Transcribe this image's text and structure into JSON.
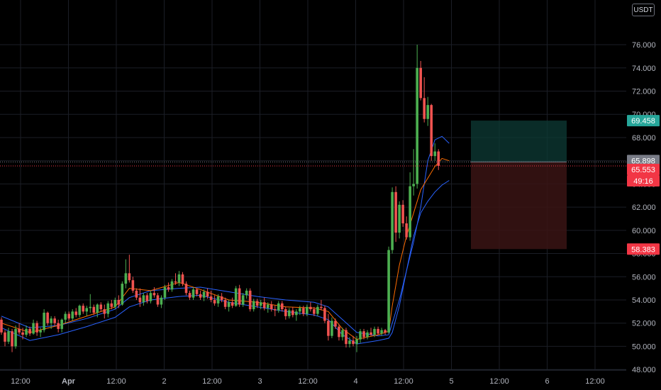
{
  "chart_data": {
    "type": "candlestick",
    "quote_currency": "USDT",
    "y_ticks": [
      "48.000",
      "50.000",
      "52.000",
      "54.000",
      "56.000",
      "58.000",
      "60.000",
      "62.000",
      "64.000",
      "66.000",
      "68.000",
      "70.000",
      "72.000",
      "74.000",
      "76.000"
    ],
    "ylim": [
      47.0,
      77.3
    ],
    "x_ticks": [
      {
        "label": "12:00",
        "bold": false
      },
      {
        "label": "Apr",
        "bold": true
      },
      {
        "label": "12:00",
        "bold": false
      },
      {
        "label": "2",
        "bold": false
      },
      {
        "label": "12:00",
        "bold": false
      },
      {
        "label": "3",
        "bold": false
      },
      {
        "label": "12:00",
        "bold": false
      },
      {
        "label": "4",
        "bold": false
      },
      {
        "label": "12:00",
        "bold": false
      },
      {
        "label": "5",
        "bold": false
      },
      {
        "label": "12:00",
        "bold": false
      },
      {
        "label": "6",
        "bold": false
      },
      {
        "label": "12:00",
        "bold": false
      }
    ],
    "grid": true,
    "price_labels": {
      "take_profit": {
        "text": "69.458",
        "value": 69.458,
        "color": "#26a69a"
      },
      "entry": {
        "text": "65.898",
        "value": 65.898,
        "color": "#787b86"
      },
      "last": {
        "text": "65.553",
        "value": 65.553,
        "color": "#f23645"
      },
      "countdown": {
        "text": "49:16",
        "color": "#f23645"
      },
      "stop_loss": {
        "text": "58.383",
        "value": 58.383,
        "color": "#f23645"
      }
    },
    "position_tool": {
      "entry": 65.898,
      "target": 69.458,
      "stop": 58.383
    },
    "series": [
      {
        "name": "",
        "color": "#2962ff",
        "role": "ma-slow"
      },
      {
        "name": "",
        "color": "#ff6d00",
        "role": "ma-fast"
      }
    ],
    "candles_note": "approximate OHLC per bar",
    "candles": [
      [
        52.3,
        52.5,
        51.0,
        51.2
      ],
      [
        51.2,
        51.4,
        50.0,
        50.4
      ],
      [
        50.4,
        51.6,
        50.2,
        51.3
      ],
      [
        51.3,
        51.5,
        49.5,
        50.0
      ],
      [
        50.0,
        51.8,
        49.8,
        51.5
      ],
      [
        51.5,
        52.0,
        51.0,
        51.2
      ],
      [
        51.2,
        51.6,
        50.6,
        51.0
      ],
      [
        51.0,
        51.8,
        50.8,
        51.5
      ],
      [
        51.5,
        51.7,
        50.9,
        51.1
      ],
      [
        51.1,
        52.3,
        51.0,
        52.0
      ],
      [
        52.0,
        52.2,
        50.9,
        51.2
      ],
      [
        51.2,
        51.6,
        50.8,
        51.4
      ],
      [
        51.4,
        53.2,
        51.2,
        52.9
      ],
      [
        52.9,
        53.0,
        51.8,
        52.0
      ],
      [
        52.0,
        52.6,
        51.5,
        52.4
      ],
      [
        52.4,
        52.6,
        51.8,
        52.0
      ],
      [
        52.0,
        52.3,
        51.2,
        51.5
      ],
      [
        51.5,
        52.4,
        51.2,
        52.3
      ],
      [
        52.3,
        53.0,
        52.0,
        52.8
      ],
      [
        52.8,
        53.0,
        52.2,
        52.4
      ],
      [
        52.4,
        53.2,
        52.2,
        53.0
      ],
      [
        53.0,
        53.3,
        52.5,
        52.7
      ],
      [
        52.7,
        53.6,
        52.5,
        53.5
      ],
      [
        53.5,
        53.7,
        52.8,
        53.0
      ],
      [
        53.0,
        53.5,
        52.6,
        53.3
      ],
      [
        53.3,
        54.5,
        52.9,
        53.4
      ],
      [
        53.4,
        53.6,
        52.7,
        52.9
      ],
      [
        52.9,
        53.7,
        52.5,
        53.6
      ],
      [
        53.6,
        53.8,
        53.0,
        53.2
      ],
      [
        53.2,
        53.6,
        52.4,
        52.8
      ],
      [
        52.8,
        53.9,
        52.5,
        53.7
      ],
      [
        53.7,
        54.0,
        53.2,
        53.4
      ],
      [
        53.4,
        54.2,
        53.2,
        54.0
      ],
      [
        54.0,
        54.4,
        53.3,
        53.6
      ],
      [
        53.6,
        55.6,
        53.5,
        55.4
      ],
      [
        55.4,
        57.5,
        55.0,
        56.3
      ],
      [
        56.3,
        57.9,
        55.5,
        55.7
      ],
      [
        55.7,
        56.0,
        54.6,
        54.8
      ],
      [
        54.8,
        55.0,
        54.0,
        54.2
      ],
      [
        54.2,
        55.0,
        53.4,
        53.8
      ],
      [
        53.8,
        54.6,
        53.5,
        54.4
      ],
      [
        54.4,
        54.6,
        53.7,
        53.9
      ],
      [
        53.9,
        54.8,
        53.7,
        54.6
      ],
      [
        54.6,
        55.1,
        54.2,
        54.4
      ],
      [
        54.4,
        54.6,
        53.4,
        53.6
      ],
      [
        53.6,
        54.4,
        53.3,
        54.2
      ],
      [
        54.2,
        55.3,
        54.0,
        55.1
      ],
      [
        55.1,
        55.5,
        54.7,
        54.9
      ],
      [
        54.9,
        55.8,
        54.7,
        55.6
      ],
      [
        55.6,
        56.3,
        55.3,
        55.5
      ],
      [
        55.5,
        56.5,
        55.2,
        56.2
      ],
      [
        56.2,
        56.4,
        55.2,
        55.4
      ],
      [
        55.4,
        55.6,
        54.4,
        54.6
      ],
      [
        54.6,
        54.8,
        54.0,
        54.2
      ],
      [
        54.2,
        55.1,
        54.0,
        54.9
      ],
      [
        54.9,
        55.0,
        54.3,
        54.5
      ],
      [
        54.5,
        54.8,
        54.0,
        54.2
      ],
      [
        54.2,
        54.9,
        53.9,
        54.7
      ],
      [
        54.7,
        55.0,
        54.1,
        54.3
      ],
      [
        54.3,
        54.8,
        53.8,
        54.0
      ],
      [
        54.0,
        54.4,
        53.5,
        53.7
      ],
      [
        53.7,
        54.5,
        53.4,
        54.3
      ],
      [
        54.3,
        54.6,
        53.8,
        54.0
      ],
      [
        54.0,
        54.2,
        53.2,
        53.4
      ],
      [
        53.4,
        54.0,
        53.0,
        53.8
      ],
      [
        53.8,
        54.2,
        53.3,
        53.5
      ],
      [
        53.5,
        55.2,
        53.4,
        55.0
      ],
      [
        55.0,
        55.3,
        53.4,
        53.6
      ],
      [
        53.6,
        54.6,
        53.4,
        54.4
      ],
      [
        54.4,
        55.0,
        54.1,
        54.8
      ],
      [
        54.8,
        55.0,
        53.0,
        53.2
      ],
      [
        53.2,
        54.1,
        53.0,
        53.9
      ],
      [
        53.9,
        54.1,
        53.3,
        53.5
      ],
      [
        53.5,
        54.0,
        53.2,
        53.8
      ],
      [
        53.8,
        54.2,
        53.1,
        53.3
      ],
      [
        53.3,
        53.8,
        52.9,
        53.6
      ],
      [
        53.6,
        53.9,
        53.0,
        53.2
      ],
      [
        53.2,
        53.5,
        52.6,
        53.1
      ],
      [
        53.1,
        53.9,
        52.9,
        53.7
      ],
      [
        53.7,
        53.9,
        53.0,
        53.2
      ],
      [
        53.2,
        53.4,
        52.3,
        52.6
      ],
      [
        52.6,
        53.3,
        52.4,
        53.1
      ],
      [
        53.1,
        53.4,
        52.5,
        52.7
      ],
      [
        52.7,
        53.2,
        52.2,
        53.0
      ],
      [
        53.0,
        53.5,
        52.7,
        53.3
      ],
      [
        53.3,
        53.5,
        52.6,
        52.8
      ],
      [
        52.8,
        53.6,
        52.6,
        53.4
      ],
      [
        53.4,
        53.8,
        53.0,
        53.2
      ],
      [
        53.2,
        53.4,
        52.6,
        52.8
      ],
      [
        52.8,
        53.6,
        52.6,
        53.4
      ],
      [
        53.4,
        54.0,
        53.1,
        53.3
      ],
      [
        53.3,
        53.5,
        52.0,
        52.2
      ],
      [
        52.2,
        52.8,
        50.5,
        50.9
      ],
      [
        50.9,
        52.5,
        50.7,
        52.2
      ],
      [
        52.2,
        52.4,
        51.5,
        51.7
      ],
      [
        51.7,
        51.9,
        50.5,
        50.8
      ],
      [
        50.8,
        51.6,
        50.5,
        51.4
      ],
      [
        51.4,
        51.6,
        49.9,
        50.2
      ],
      [
        50.2,
        50.8,
        49.9,
        50.5
      ],
      [
        50.5,
        50.9,
        50.0,
        50.2
      ],
      [
        50.2,
        50.9,
        49.5,
        50.6
      ],
      [
        50.6,
        51.5,
        50.3,
        51.3
      ],
      [
        51.3,
        51.5,
        50.6,
        50.8
      ],
      [
        50.8,
        51.4,
        50.6,
        51.2
      ],
      [
        51.2,
        51.6,
        50.9,
        51.0
      ],
      [
        51.0,
        51.7,
        50.8,
        51.5
      ],
      [
        51.5,
        51.7,
        51.0,
        51.1
      ],
      [
        51.1,
        51.6,
        50.9,
        51.4
      ],
      [
        51.4,
        51.5,
        51.0,
        51.2
      ],
      [
        51.2,
        58.6,
        51.1,
        58.3
      ],
      [
        58.3,
        63.7,
        58.0,
        63.3
      ],
      [
        63.3,
        63.8,
        59.0,
        59.8
      ],
      [
        59.8,
        62.5,
        59.3,
        62.2
      ],
      [
        62.2,
        62.6,
        60.3,
        60.6
      ],
      [
        60.6,
        61.2,
        59.2,
        59.4
      ],
      [
        59.4,
        65.0,
        59.1,
        63.8
      ],
      [
        63.8,
        67.0,
        63.0,
        64.0
      ],
      [
        64.0,
        76.0,
        63.6,
        74.0
      ],
      [
        74.0,
        74.6,
        71.2,
        71.4
      ],
      [
        71.4,
        73.2,
        69.3,
        69.6
      ],
      [
        69.6,
        71.5,
        69.0,
        70.8
      ],
      [
        70.8,
        70.9,
        66.0,
        66.4
      ],
      [
        66.4,
        67.5,
        66.0,
        66.8
      ],
      [
        66.8,
        67.0,
        65.2,
        65.553
      ]
    ],
    "ma_slow": [
      [
        0,
        52.6
      ],
      [
        8,
        51.6
      ],
      [
        16,
        51.8
      ],
      [
        24,
        52.4
      ],
      [
        32,
        53.2
      ],
      [
        36,
        54.2
      ],
      [
        42,
        54.8
      ],
      [
        50,
        55.0
      ],
      [
        56,
        55.1
      ],
      [
        64,
        54.7
      ],
      [
        72,
        54.3
      ],
      [
        80,
        54.0
      ],
      [
        88,
        53.8
      ],
      [
        92,
        53.4
      ],
      [
        96,
        52.3
      ],
      [
        100,
        51.2
      ],
      [
        106,
        50.9
      ],
      [
        109,
        51.0
      ],
      [
        110,
        52.0
      ],
      [
        112,
        54.0
      ],
      [
        114,
        56.5
      ],
      [
        116,
        59.0
      ],
      [
        118,
        62.0
      ],
      [
        120,
        66.0
      ],
      [
        122,
        67.8
      ],
      [
        124,
        68.1
      ],
      [
        126,
        67.5
      ]
    ],
    "ma_fast": [
      [
        0,
        52.0
      ],
      [
        8,
        51.2
      ],
      [
        16,
        51.8
      ],
      [
        24,
        52.6
      ],
      [
        32,
        53.4
      ],
      [
        36,
        55.0
      ],
      [
        42,
        54.8
      ],
      [
        50,
        55.5
      ],
      [
        56,
        54.9
      ],
      [
        64,
        54.0
      ],
      [
        72,
        53.8
      ],
      [
        80,
        53.4
      ],
      [
        88,
        53.3
      ],
      [
        92,
        53.0
      ],
      [
        96,
        51.5
      ],
      [
        100,
        50.6
      ],
      [
        106,
        51.0
      ],
      [
        109,
        51.3
      ],
      [
        110,
        53.5
      ],
      [
        112,
        57.0
      ],
      [
        114,
        59.5
      ],
      [
        116,
        61.5
      ],
      [
        118,
        63.5
      ],
      [
        120,
        64.5
      ],
      [
        122,
        65.5
      ],
      [
        124,
        66.2
      ],
      [
        126,
        66.0
      ]
    ],
    "ma_low": [
      [
        0,
        51.6
      ],
      [
        8,
        50.5
      ],
      [
        16,
        51.0
      ],
      [
        24,
        51.7
      ],
      [
        32,
        52.5
      ],
      [
        36,
        53.4
      ],
      [
        42,
        54.0
      ],
      [
        50,
        54.3
      ],
      [
        56,
        54.4
      ],
      [
        64,
        53.8
      ],
      [
        72,
        53.4
      ],
      [
        80,
        53.0
      ],
      [
        88,
        52.7
      ],
      [
        92,
        52.3
      ],
      [
        96,
        51.0
      ],
      [
        100,
        50.2
      ],
      [
        106,
        50.5
      ],
      [
        109,
        50.7
      ],
      [
        110,
        51.2
      ],
      [
        112,
        53.5
      ],
      [
        114,
        56.5
      ],
      [
        116,
        59.5
      ],
      [
        118,
        61.5
      ],
      [
        120,
        62.5
      ],
      [
        122,
        63.3
      ],
      [
        124,
        63.9
      ],
      [
        126,
        64.3
      ]
    ]
  }
}
